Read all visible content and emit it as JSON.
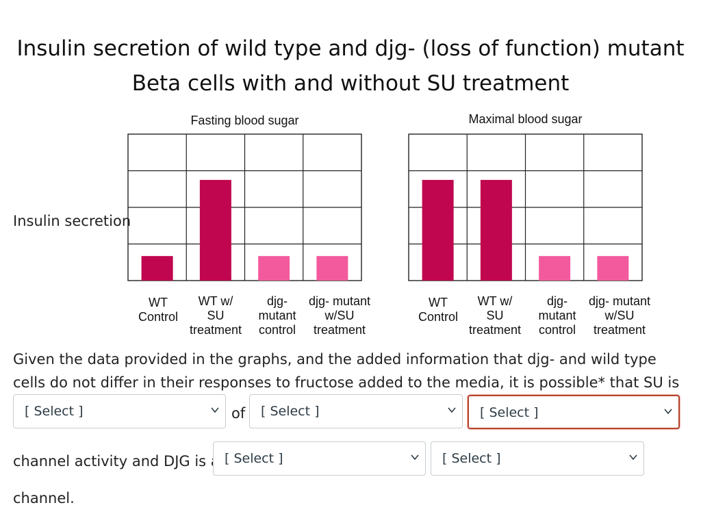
{
  "title_line1": "Insulin secretion of wild type and djg- (loss of function) mutant",
  "title_line2": "Beta cells with and without SU treatment",
  "y_axis_label": "Insulin secretion",
  "chart_data": [
    {
      "type": "bar",
      "title": "Fasting blood sugar",
      "ylabel": "Insulin secretion",
      "ylim": [
        0,
        4
      ],
      "grid": true,
      "categories": [
        [
          "WT",
          "Control"
        ],
        [
          "WT w/",
          "SU",
          "treatment"
        ],
        [
          "djg-",
          "mutant",
          "control"
        ],
        [
          "djg- mutant",
          "w/SU",
          "treatment"
        ]
      ],
      "values": [
        0.67,
        2.75,
        0.67,
        0.67
      ],
      "colors": [
        "#c0064e",
        "#c0064e",
        "#f35a9e",
        "#f35a9e"
      ]
    },
    {
      "type": "bar",
      "title": "Maximal blood sugar",
      "ylabel": "",
      "ylim": [
        0,
        4
      ],
      "grid": true,
      "categories": [
        [
          "WT",
          "Control"
        ],
        [
          "WT w/",
          "SU",
          "treatment"
        ],
        [
          "djg-",
          "mutant",
          "control"
        ],
        [
          "djg- mutant",
          "w/SU",
          "treatment"
        ]
      ],
      "values": [
        2.75,
        2.75,
        0.67,
        0.67
      ],
      "colors": [
        "#c0064e",
        "#c0064e",
        "#f35a9e",
        "#f35a9e"
      ]
    }
  ],
  "question": {
    "text": "Given the data provided in the graphs, and the added information that djg- and wild type cells do not differ in their responses to fructose added to the media,  it is possible* that SU is",
    "of_text": "of",
    "line2_text": "channel activity and DJG is a",
    "line3_text": "channel."
  },
  "selects": [
    {
      "value": "[ Select ]"
    },
    {
      "value": "[ Select ]"
    },
    {
      "value": "[ Select ]"
    },
    {
      "value": "[ Select ]"
    },
    {
      "value": "[ Select ]"
    }
  ]
}
